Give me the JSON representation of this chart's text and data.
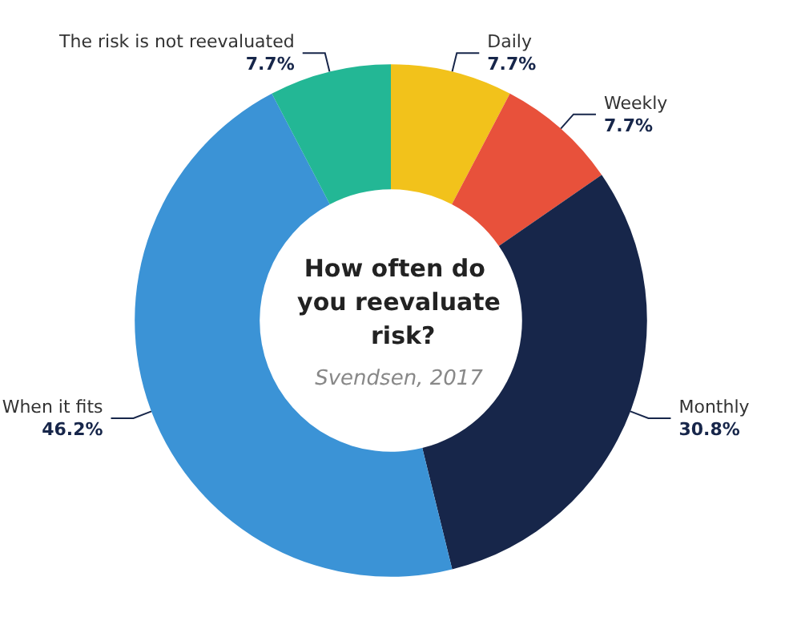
{
  "chart_data": {
    "type": "donut",
    "title": "How often do you reevaluate risk?",
    "subtitle": "Svendsen, 2017",
    "categories": [
      "Daily",
      "Weekly",
      "Monthly",
      "When it fits",
      "The risk is not reevaluated"
    ],
    "values": [
      7.7,
      7.7,
      30.8,
      46.2,
      7.7
    ],
    "value_labels": [
      "7.7%",
      "7.7%",
      "30.8%",
      "46.2%",
      "7.7%"
    ],
    "colors": [
      "#f2c21b",
      "#e8513b",
      "#17264a",
      "#3b93d6",
      "#23b795"
    ],
    "legend": false
  }
}
